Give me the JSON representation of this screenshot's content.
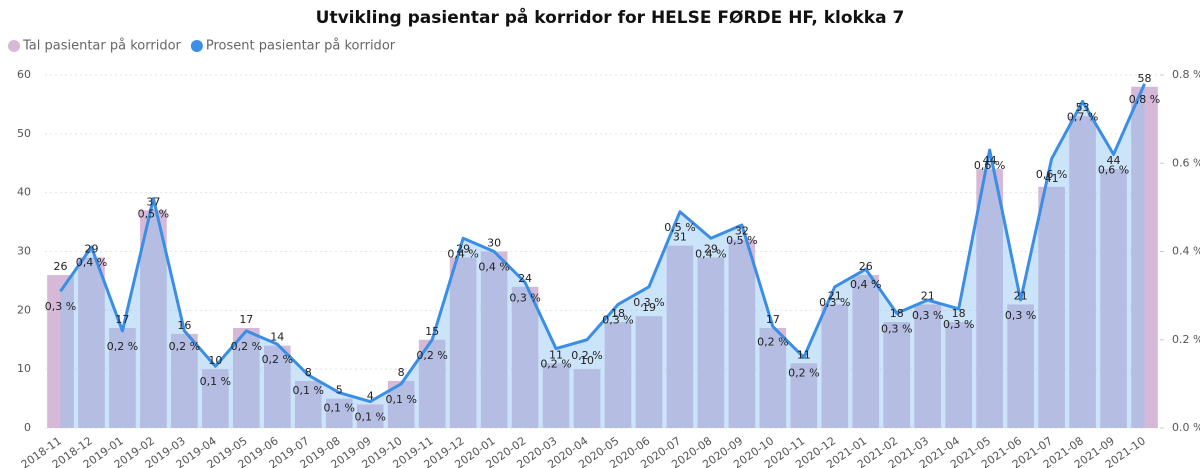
{
  "chart_data": {
    "type": "bar",
    "title": "Utvikling pasientar på korridor for HELSE FØRDE HF, klokka 7",
    "categories": [
      "2018-11",
      "2018-12",
      "2019-01",
      "2019-02",
      "2019-03",
      "2019-04",
      "2019-05",
      "2019-06",
      "2019-07",
      "2019-08",
      "2019-09",
      "2019-10",
      "2019-11",
      "2019-12",
      "2020-01",
      "2020-02",
      "2020-03",
      "2020-04",
      "2020-05",
      "2020-06",
      "2020-07",
      "2020-08",
      "2020-09",
      "2020-10",
      "2020-11",
      "2020-12",
      "2021-01",
      "2021-02",
      "2021-03",
      "2021-04",
      "2021-05",
      "2021-06",
      "2021-07",
      "2021-08",
      "2021-09",
      "2021-10"
    ],
    "series": [
      {
        "name": "Tal pasientar på korridor",
        "color": "#d6b9d6",
        "type": "bar",
        "values": [
          26,
          29,
          17,
          37,
          16,
          10,
          17,
          14,
          8,
          5,
          4,
          8,
          15,
          29,
          30,
          24,
          11,
          10,
          18,
          19,
          31,
          29,
          32,
          17,
          11,
          21,
          26,
          18,
          21,
          18,
          44,
          21,
          41,
          53,
          44,
          58
        ]
      },
      {
        "name": "Prosent pasientar på korridor",
        "color": "#3a8ee6",
        "type": "line",
        "axis": "y2",
        "values": [
          0.31,
          0.41,
          0.22,
          0.52,
          0.22,
          0.14,
          0.22,
          0.19,
          0.12,
          0.08,
          0.06,
          0.1,
          0.2,
          0.43,
          0.4,
          0.33,
          0.18,
          0.2,
          0.28,
          0.32,
          0.49,
          0.43,
          0.46,
          0.23,
          0.16,
          0.32,
          0.36,
          0.26,
          0.29,
          0.27,
          0.63,
          0.29,
          0.61,
          0.74,
          0.62,
          0.78
        ],
        "value_labels": [
          "0,3 %",
          "0,4 %",
          "0,2 %",
          "0,5 %",
          "0,2 %",
          "0,1 %",
          "0,2 %",
          "0,2 %",
          "0,1 %",
          "0,1 %",
          "0,1 %",
          "0,1 %",
          "0,2 %",
          "0,4 %",
          "0,4 %",
          "0,3 %",
          "0,2 %",
          "0,2 %",
          "0,3 %",
          "0,3 %",
          "0,5 %",
          "0,4 %",
          "0,5 %",
          "0,2 %",
          "0,2 %",
          "0,3 %",
          "0,4 %",
          "0,3 %",
          "0,3 %",
          "0,3 %",
          "0,6 %",
          "0,3 %",
          "0,6 %",
          "0,7 %",
          "0,6 %",
          "0,8 %"
        ]
      }
    ],
    "ylim": [
      0,
      60
    ],
    "yticks": [
      0,
      10,
      20,
      30,
      40,
      50,
      60
    ],
    "y2lim": [
      0,
      0.8
    ],
    "y2ticks": [
      {
        "value": 0,
        "label": "0.0 %"
      },
      {
        "value": 0.2,
        "label": "0.2 %"
      },
      {
        "value": 0.4,
        "label": "0.4 %"
      },
      {
        "value": 0.6,
        "label": "0.6 %"
      },
      {
        "value": 0.8,
        "label": "0.8 %"
      }
    ],
    "grid": true
  }
}
